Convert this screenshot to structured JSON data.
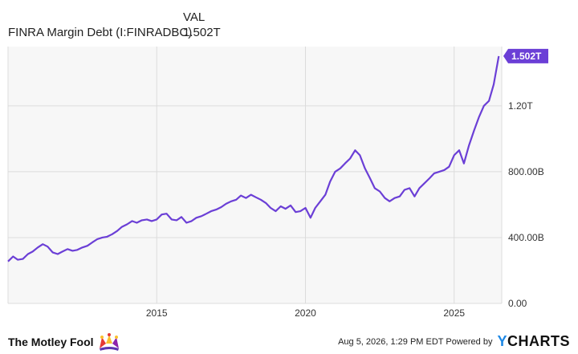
{
  "legend": {
    "column_header": "VAL",
    "series_name": "FINRA Margin Debt (I:FINRADBC)",
    "series_value": "1.502T"
  },
  "colors": {
    "line": "#6b3fd6",
    "grid": "#dcdcdc",
    "plot_background": "#f7f7f7",
    "accent_y": "#1e88e5"
  },
  "chart_data": {
    "type": "line",
    "title": "",
    "xlabel": "",
    "ylabel": "",
    "x_ticks": [
      "2015",
      "2020",
      "2025"
    ],
    "y_ticks": [
      "0.00",
      "400.00B",
      "800.00B",
      "1.20T"
    ],
    "y_tick_values": [
      0,
      400,
      800,
      1200
    ],
    "ylim": [
      0,
      1560
    ],
    "xlim": [
      2010.0,
      2026.6
    ],
    "grid": true,
    "last_value_label": "1.502T",
    "series": [
      {
        "name": "FINRA Margin Debt (I:FINRADBC)",
        "unit": "billions USD",
        "x": [
          2010.0,
          2010.17,
          2010.33,
          2010.5,
          2010.67,
          2010.83,
          2011.0,
          2011.17,
          2011.33,
          2011.5,
          2011.67,
          2011.83,
          2012.0,
          2012.17,
          2012.33,
          2012.5,
          2012.67,
          2012.83,
          2013.0,
          2013.17,
          2013.33,
          2013.5,
          2013.67,
          2013.83,
          2014.0,
          2014.17,
          2014.33,
          2014.5,
          2014.67,
          2014.83,
          2015.0,
          2015.17,
          2015.33,
          2015.5,
          2015.67,
          2015.83,
          2016.0,
          2016.17,
          2016.33,
          2016.5,
          2016.67,
          2016.83,
          2017.0,
          2017.17,
          2017.33,
          2017.5,
          2017.67,
          2017.83,
          2018.0,
          2018.17,
          2018.33,
          2018.5,
          2018.67,
          2018.83,
          2019.0,
          2019.17,
          2019.33,
          2019.5,
          2019.67,
          2019.83,
          2020.0,
          2020.17,
          2020.33,
          2020.5,
          2020.67,
          2020.83,
          2021.0,
          2021.17,
          2021.33,
          2021.5,
          2021.67,
          2021.83,
          2022.0,
          2022.17,
          2022.33,
          2022.5,
          2022.67,
          2022.83,
          2023.0,
          2023.17,
          2023.33,
          2023.5,
          2023.67,
          2023.83,
          2024.0,
          2024.17,
          2024.33,
          2024.5,
          2024.67,
          2024.83,
          2025.0,
          2025.17,
          2025.33,
          2025.5,
          2025.67,
          2025.83,
          2026.0,
          2026.17,
          2026.33,
          2026.5
        ],
        "values": [
          255,
          285,
          265,
          270,
          300,
          315,
          340,
          360,
          345,
          310,
          300,
          315,
          330,
          320,
          325,
          340,
          350,
          370,
          390,
          400,
          405,
          420,
          440,
          465,
          480,
          500,
          490,
          505,
          510,
          500,
          510,
          540,
          545,
          510,
          505,
          525,
          490,
          500,
          520,
          530,
          545,
          560,
          570,
          585,
          605,
          620,
          630,
          655,
          640,
          660,
          645,
          630,
          610,
          580,
          560,
          590,
          575,
          595,
          555,
          560,
          580,
          520,
          580,
          620,
          660,
          740,
          800,
          820,
          850,
          880,
          930,
          900,
          820,
          760,
          700,
          680,
          640,
          620,
          640,
          650,
          690,
          700,
          650,
          700,
          730,
          760,
          790,
          800,
          810,
          830,
          900,
          930,
          850,
          960,
          1050,
          1130,
          1200,
          1230,
          1330,
          1502
        ]
      }
    ]
  },
  "footer": {
    "brand": "The Motley Fool",
    "brand_logo_icon": "jester-hat-icon",
    "credit": "Aug 5, 2026, 1:29 PM EDT Powered by",
    "ycharts_y": "Y",
    "ycharts_rest": "CHARTS"
  }
}
